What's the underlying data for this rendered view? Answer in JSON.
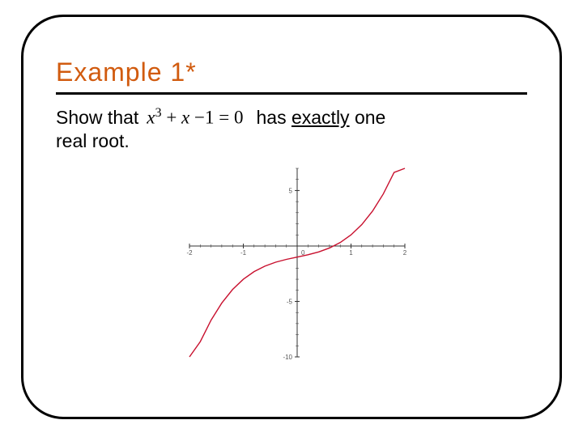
{
  "title": "Example 1*",
  "prose": {
    "show_that": "Show that",
    "has": "has",
    "exactly": "exactly",
    "one": "one",
    "real_root": "real root."
  },
  "equation": {
    "lhs_var": "x",
    "exp1": "3",
    "plus1": "+",
    "term2": "x",
    "minus": "−",
    "one": "1",
    "eq": "=",
    "zero": "0"
  },
  "chart": {
    "type": "line",
    "xlim": [
      -2,
      2
    ],
    "ylim": [
      -10,
      7
    ],
    "xticks": [
      -2,
      -1,
      1,
      2
    ],
    "yticks": [
      -10,
      -5,
      5
    ],
    "xminor_step": 0.2,
    "yminor_step": 1,
    "background_color": "#ffffff",
    "axis_color": "#333333",
    "tick_color": "#333333",
    "curve_color": "#c8102e",
    "curve_width": 1.4,
    "tick_fontsize": 8,
    "label_color": "#555555",
    "origin_label": "0",
    "series": {
      "formula": "x^3 + x - 1",
      "points": [
        [
          -2.0,
          -11.0
        ],
        [
          -1.8,
          -8.632
        ],
        [
          -1.6,
          -6.696
        ],
        [
          -1.4,
          -5.144
        ],
        [
          -1.2,
          -3.928
        ],
        [
          -1.0,
          -3.0
        ],
        [
          -0.8,
          -2.312
        ],
        [
          -0.6,
          -1.816
        ],
        [
          -0.4,
          -1.464
        ],
        [
          -0.2,
          -1.208
        ],
        [
          0.0,
          -1.0
        ],
        [
          0.2,
          -0.792
        ],
        [
          0.4,
          -0.536
        ],
        [
          0.6,
          -0.184
        ],
        [
          0.8,
          0.312
        ],
        [
          1.0,
          1.0
        ],
        [
          1.2,
          1.928
        ],
        [
          1.4,
          3.144
        ],
        [
          1.6,
          4.696
        ],
        [
          1.8,
          6.632
        ],
        [
          2.0,
          9.0
        ]
      ]
    }
  }
}
